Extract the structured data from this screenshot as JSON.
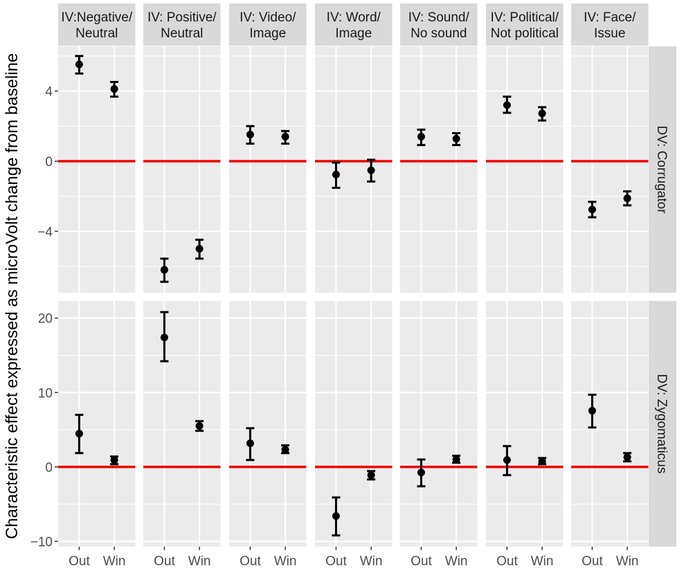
{
  "chart_data": {
    "type": "scatter",
    "subtype": "faceted point-range with error bars",
    "ylabel": "Characteristic effect expressed as microVolt change from baseline",
    "xlabel": "",
    "categories": [
      "Out",
      "Win"
    ],
    "columns": [
      "IV:Negative/\nNeutral",
      "IV: Positive/\nNeutral",
      "IV: Video/\nImage",
      "IV: Word/\nImage",
      "IV: Sound/\nNo sound",
      "IV: Political/\nNot political",
      "IV: Face/\nIssue"
    ],
    "reference_line": {
      "y": 0,
      "color": "#ee0000"
    },
    "rows": [
      {
        "label": "DV: Corrugator",
        "ylim": [
          -7.5,
          6.55
        ],
        "yticks": [
          -4,
          0,
          4
        ],
        "ytick_labels": [
          "−4",
          "0",
          "4"
        ],
        "panels": [
          {
            "out": [
              5.52,
              5.0,
              6.0
            ],
            "win": [
              4.12,
              3.68,
              4.52
            ]
          },
          {
            "out": [
              -6.2,
              -6.88,
              -5.56
            ],
            "win": [
              -5.0,
              -5.56,
              -4.48
            ]
          },
          {
            "out": [
              1.52,
              1.0,
              2.0
            ],
            "win": [
              1.4,
              1.0,
              1.72
            ]
          },
          {
            "out": [
              -0.76,
              -1.52,
              -0.08
            ],
            "win": [
              -0.52,
              -1.16,
              0.08
            ]
          },
          {
            "out": [
              1.4,
              0.92,
              1.8
            ],
            "win": [
              1.28,
              0.92,
              1.6
            ]
          },
          {
            "out": [
              3.2,
              2.76,
              3.68
            ],
            "win": [
              2.72,
              2.32,
              3.08
            ]
          },
          {
            "out": [
              -2.76,
              -3.2,
              -2.32
            ],
            "win": [
              -2.12,
              -2.52,
              -1.72
            ]
          }
        ]
      },
      {
        "label": "DV: Zygomaticus",
        "ylim": [
          -10.7,
          22.3
        ],
        "yticks": [
          -10,
          0,
          10,
          20
        ],
        "ytick_labels": [
          "−10",
          "0",
          "10",
          "20"
        ],
        "panels": [
          {
            "out": [
              4.47,
              1.86,
              7.0
            ],
            "win": [
              0.93,
              0.37,
              1.4
            ]
          },
          {
            "out": [
              17.4,
              14.2,
              20.8
            ],
            "win": [
              5.5,
              4.85,
              6.15
            ]
          },
          {
            "out": [
              3.17,
              0.93,
              5.2
            ],
            "win": [
              2.33,
              1.86,
              2.9
            ]
          },
          {
            "out": [
              -6.6,
              -9.2,
              -4.1
            ],
            "win": [
              -1.1,
              -1.68,
              -0.56
            ]
          },
          {
            "out": [
              -0.75,
              -2.6,
              1.0
            ],
            "win": [
              1.0,
              0.56,
              1.5
            ]
          },
          {
            "out": [
              0.93,
              -1.1,
              2.8
            ],
            "win": [
              0.75,
              0.37,
              1.2
            ]
          },
          {
            "out": [
              7.55,
              5.3,
              9.7
            ],
            "win": [
              1.3,
              0.75,
              1.86
            ]
          }
        ]
      }
    ],
    "point_format": "[estimate, lower, upper]"
  }
}
